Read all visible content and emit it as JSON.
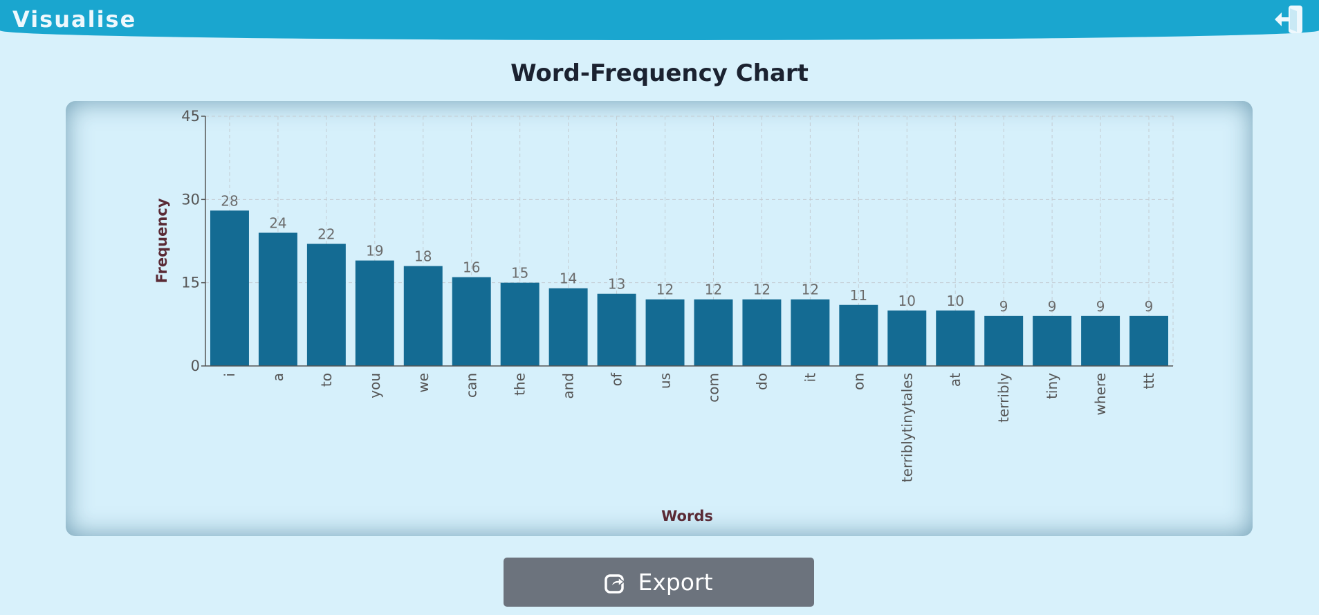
{
  "header": {
    "title": "Visualise",
    "logout_icon": "logout-icon"
  },
  "page": {
    "heading": "Word-Frequency Chart"
  },
  "colors": {
    "header_bg": "#1aa6cf",
    "page_bg": "#d8f1fb",
    "bar": "#146b93",
    "axis_title": "#5a2a35",
    "export_bg": "#6c737d"
  },
  "chart_data": {
    "type": "bar",
    "categories": [
      "i",
      "a",
      "to",
      "you",
      "we",
      "can",
      "the",
      "and",
      "of",
      "us",
      "com",
      "do",
      "it",
      "on",
      "terriblytinytales",
      "at",
      "terribly",
      "tiny",
      "where",
      "ttt"
    ],
    "values": [
      28,
      24,
      22,
      19,
      18,
      16,
      15,
      14,
      13,
      12,
      12,
      12,
      12,
      11,
      10,
      10,
      9,
      9,
      9,
      9
    ],
    "title": "",
    "xlabel": "Words",
    "ylabel": "Frequency",
    "ylim": [
      0,
      45
    ],
    "yticks": [
      0,
      15,
      30,
      45
    ],
    "grid": true,
    "data_labels": true
  },
  "export": {
    "label": "Export",
    "icon": "share-icon"
  }
}
